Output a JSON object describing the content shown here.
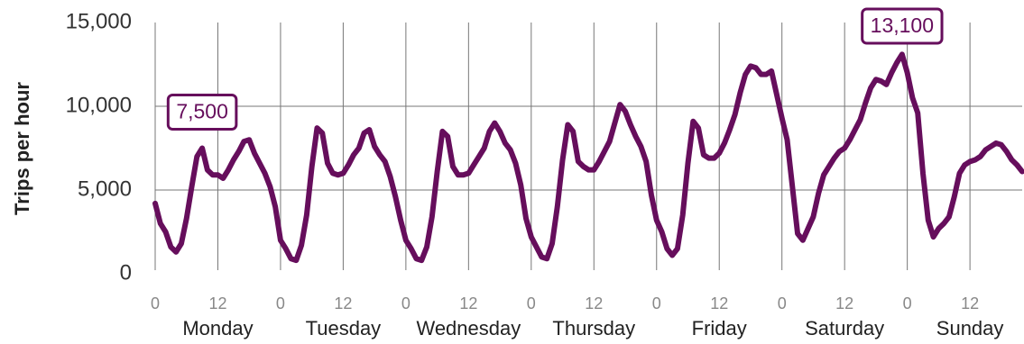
{
  "chart_data": {
    "type": "line",
    "y_label": "Trips per hour",
    "x": [
      0,
      1,
      2,
      3,
      4,
      5,
      6,
      7,
      8,
      9,
      10,
      11,
      12,
      13,
      14,
      15,
      16,
      17,
      18,
      19,
      20,
      21,
      22,
      23,
      24,
      25,
      26,
      27,
      28,
      29,
      30,
      31,
      32,
      33,
      34,
      35,
      36,
      37,
      38,
      39,
      40,
      41,
      42,
      43,
      44,
      45,
      46,
      47,
      48,
      49,
      50,
      51,
      52,
      53,
      54,
      55,
      56,
      57,
      58,
      59,
      60,
      61,
      62,
      63,
      64,
      65,
      66,
      67,
      68,
      69,
      70,
      71,
      72,
      73,
      74,
      75,
      76,
      77,
      78,
      79,
      80,
      81,
      82,
      83,
      84,
      85,
      86,
      87,
      88,
      89,
      90,
      91,
      92,
      93,
      94,
      95,
      96,
      97,
      98,
      99,
      100,
      101,
      102,
      103,
      104,
      105,
      106,
      107,
      108,
      109,
      110,
      111,
      112,
      113,
      114,
      115,
      116,
      117,
      118,
      119,
      120,
      121,
      122,
      123,
      124,
      125,
      126,
      127,
      128,
      129,
      130,
      131,
      132,
      133,
      134,
      135,
      136,
      137,
      138,
      139,
      140,
      141,
      142,
      143,
      144,
      145,
      146,
      147,
      148,
      149,
      150,
      151,
      152,
      153,
      154,
      155,
      156,
      157,
      158,
      159,
      160,
      161,
      162,
      163,
      164,
      165,
      166
    ],
    "series": [
      {
        "name": "Trips",
        "color": "#660e5c",
        "values": [
          4200,
          3000,
          2500,
          1600,
          1300,
          1800,
          3300,
          5200,
          7000,
          7500,
          6200,
          5900,
          5900,
          5700,
          6200,
          6800,
          7300,
          7900,
          8000,
          7200,
          6600,
          6000,
          5200,
          4000,
          2000,
          1500,
          900,
          800,
          1700,
          3500,
          6400,
          8700,
          8400,
          6600,
          6000,
          5900,
          6000,
          6500,
          7100,
          7500,
          8400,
          8600,
          7600,
          7100,
          6700,
          5800,
          4600,
          3200,
          2000,
          1500,
          900,
          800,
          1600,
          3400,
          6100,
          8500,
          8200,
          6400,
          5900,
          5900,
          6000,
          6500,
          7000,
          7500,
          8500,
          9000,
          8500,
          7800,
          7400,
          6600,
          5300,
          3300,
          2200,
          1600,
          1000,
          900,
          1800,
          4000,
          6800,
          8900,
          8500,
          6700,
          6400,
          6200,
          6200,
          6700,
          7300,
          7900,
          9000,
          10100,
          9700,
          8900,
          8200,
          7600,
          6700,
          4700,
          3200,
          2500,
          1500,
          1100,
          1500,
          3500,
          6600,
          9100,
          8700,
          7100,
          6900,
          6900,
          7200,
          7800,
          8600,
          9500,
          10800,
          11900,
          12400,
          12300,
          11900,
          11900,
          12100,
          10700,
          9300,
          8000,
          5200,
          2400,
          2000,
          2700,
          3400,
          4800,
          5900,
          6400,
          6900,
          7300,
          7500,
          8000,
          8600,
          9200,
          10200,
          11100,
          11600,
          11500,
          11300,
          12000,
          12600,
          13100,
          12000,
          10500,
          9600,
          6000,
          3200,
          2200,
          2700,
          3000,
          3400,
          4600,
          6000,
          6500,
          6700,
          6800,
          7000,
          7400,
          7600,
          7800,
          7700,
          7300,
          6800,
          6500,
          6100
        ]
      }
    ],
    "xlim": [
      0,
      166
    ],
    "xticks": [
      0,
      12,
      {
        "value": 24,
        "label": "0"
      },
      {
        "value": 36,
        "label": "12"
      },
      {
        "value": 48,
        "label": "0"
      },
      {
        "value": 60,
        "label": "12"
      },
      {
        "value": 72,
        "label": "0"
      },
      {
        "value": 84,
        "label": "12"
      },
      {
        "value": 96,
        "label": "0"
      },
      {
        "value": 108,
        "label": "12"
      },
      {
        "value": 120,
        "label": "0"
      },
      {
        "value": 132,
        "label": "12"
      },
      {
        "value": 144,
        "label": "0"
      },
      {
        "value": 156,
        "label": "12"
      }
    ],
    "days": [
      "Monday",
      "Tuesday",
      "Wednesday",
      "Thursday",
      "Friday",
      "Saturday",
      "Sunday"
    ],
    "ylim": [
      0,
      15000
    ],
    "yticks": [
      0,
      {
        "value": 5000,
        "label": "5,000"
      },
      {
        "value": 10000,
        "label": "10,000"
      },
      {
        "value": 15000,
        "label": "15,000"
      }
    ],
    "grid": true,
    "annotations": [
      {
        "x": 9,
        "value": 7500,
        "label": "7,500"
      },
      {
        "x": 143,
        "value": 13100,
        "label": "13,100"
      }
    ]
  }
}
